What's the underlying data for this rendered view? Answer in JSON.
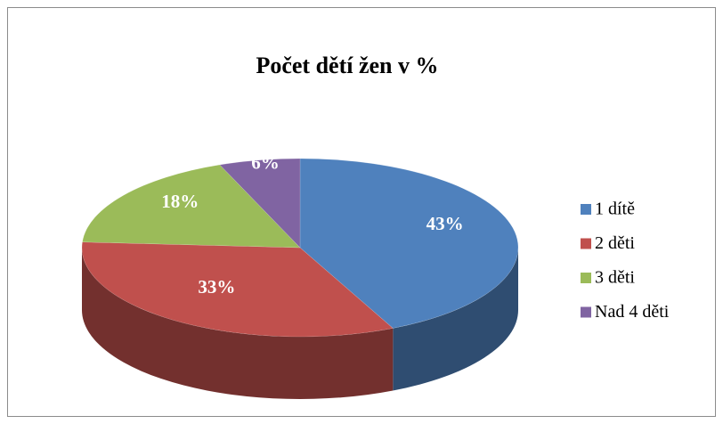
{
  "chart_data": {
    "type": "pie3d",
    "title": "Počet dětí žen v %",
    "categories": [
      "1 dítě",
      "2 děti",
      "3 děti",
      "Nad 4 děti"
    ],
    "values": [
      43,
      33,
      18,
      6
    ],
    "value_labels": [
      "43%",
      "33%",
      "18%",
      "6%"
    ],
    "colors": [
      "#4f81bd",
      "#c0504d",
      "#9bbb59",
      "#8064a2"
    ],
    "legend": "right"
  }
}
